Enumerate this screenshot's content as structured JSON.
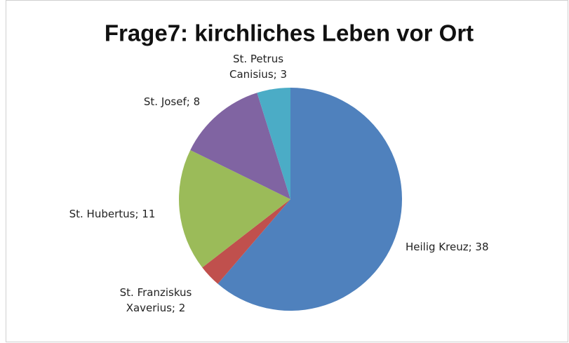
{
  "chart_data": {
    "type": "pie",
    "title": "Frage7: kirchliches Leben vor Ort",
    "values": [
      38,
      2,
      11,
      8,
      3
    ],
    "value_labels": [
      "Heilig Kreuz; 38",
      "St. Franziskus Xaverius; 2",
      "St. Hubertus; 11",
      "St. Josef; 8",
      "St. Petrus Canisius; 3"
    ],
    "colors": [
      "#4f81bd",
      "#c0504d",
      "#9bbb59",
      "#8064a2",
      "#4bacc6"
    ]
  }
}
